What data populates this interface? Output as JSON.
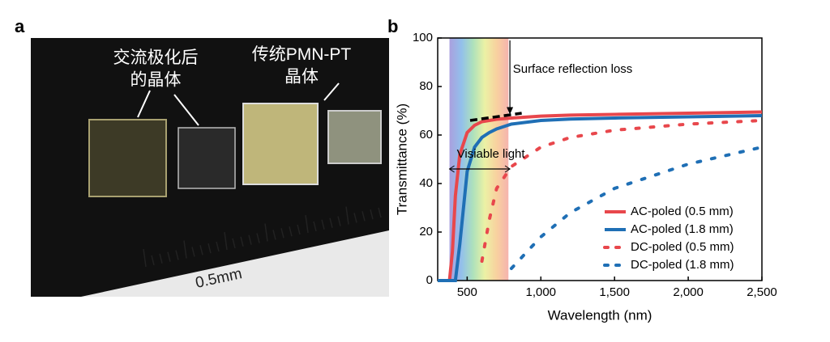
{
  "panel_a": {
    "label": "a",
    "annotations": [
      "交流极化后\n的晶体",
      "传统PMN-PT\n晶体"
    ],
    "ruler_label": "0.5mm"
  },
  "chart_data": {
    "type": "line",
    "panel_label": "b",
    "x_label": "Wavelength (nm)",
    "y_label": "Transmittance (%)",
    "annotations": [
      "Surface reflection loss",
      "Visiable light"
    ],
    "x": [
      300,
      380,
      400,
      420,
      450,
      500,
      550,
      600,
      650,
      700,
      800,
      1000,
      1200,
      1500,
      2000,
      2500
    ],
    "series": [
      {
        "name": "AC-poled (0.5 mm)",
        "color": "#e8474c",
        "style": "solid",
        "values": [
          0,
          0,
          12,
          35,
          52,
          61,
          64,
          65.5,
          66,
          66.5,
          67,
          67.8,
          68.2,
          68.5,
          69,
          69.5
        ]
      },
      {
        "name": "AC-poled (1.8 mm)",
        "color": "#1f6fb5",
        "style": "solid",
        "values": [
          0,
          0,
          0,
          0,
          15,
          45,
          55,
          59,
          61,
          62.5,
          64.5,
          66,
          66.6,
          67,
          67.5,
          68
        ]
      },
      {
        "name": "DC-poled (0.5 mm)",
        "color": "#e8474c",
        "style": "dotted",
        "values": [
          null,
          null,
          null,
          null,
          null,
          null,
          null,
          8,
          25,
          38,
          47,
          55,
          59,
          62,
          64.5,
          66
        ]
      },
      {
        "name": "DC-poled (1.8 mm)",
        "color": "#1f6fb5",
        "style": "dotted",
        "values": [
          null,
          null,
          null,
          null,
          null,
          null,
          null,
          null,
          null,
          null,
          5,
          18,
          28,
          38,
          48,
          55
        ]
      }
    ],
    "xlim": [
      300,
      2500
    ],
    "xticks": [
      500,
      {
        "value": 1000,
        "label": "1,000"
      },
      {
        "value": 1500,
        "label": "1,500"
      },
      {
        "value": 2000,
        "label": "2,000"
      },
      {
        "value": 2500,
        "label": "2,500"
      }
    ],
    "ylim": [
      0,
      100
    ],
    "yticks": [
      0,
      20,
      40,
      60,
      80,
      100
    ],
    "legend": "lower-right"
  }
}
